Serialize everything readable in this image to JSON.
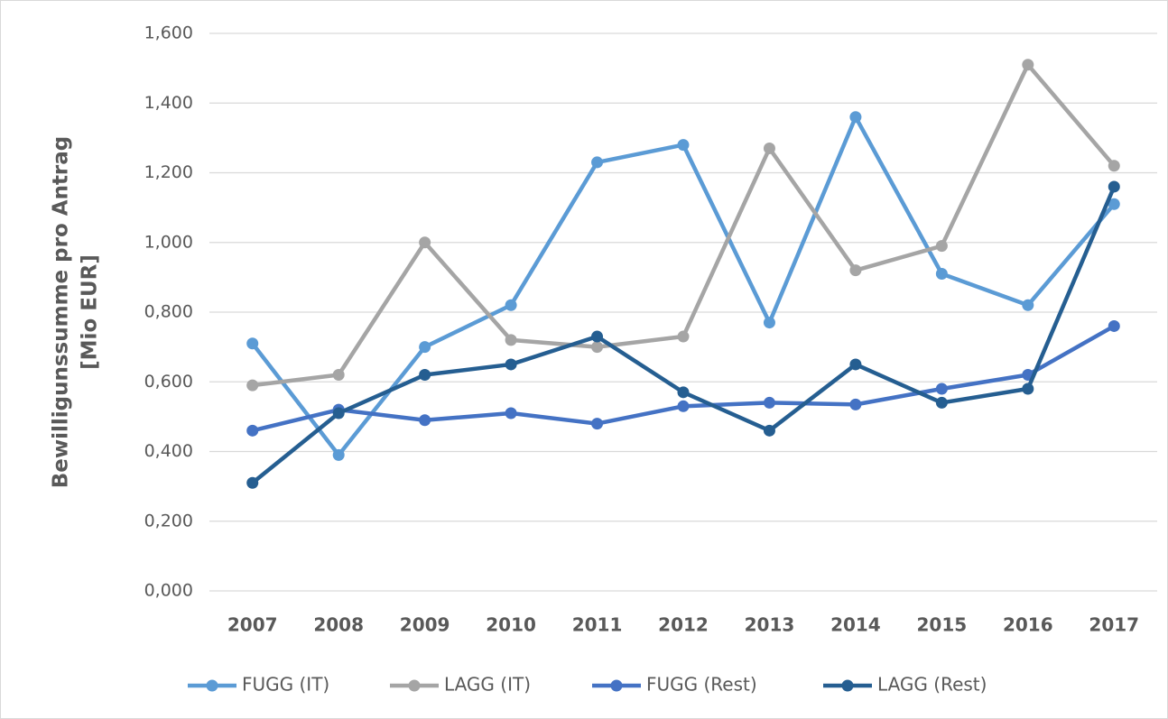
{
  "chart_data": {
    "type": "line",
    "y_label": [
      "Bewilligunssumme pro Antrag",
      "[Mio EUR]"
    ],
    "categories": [
      "2007",
      "2008",
      "2009",
      "2010",
      "2011",
      "2012",
      "2013",
      "2014",
      "2015",
      "2016",
      "2017"
    ],
    "series": [
      {
        "name": "FUGG (IT)",
        "color": "#5b9bd5",
        "values": [
          0.71,
          0.39,
          0.7,
          0.82,
          1.23,
          1.28,
          0.77,
          1.36,
          0.91,
          0.82,
          1.11
        ]
      },
      {
        "name": "LAGG (IT)",
        "color": "#a5a5a5",
        "values": [
          0.59,
          0.62,
          1.0,
          0.72,
          0.7,
          0.73,
          1.27,
          0.92,
          0.99,
          1.51,
          1.22
        ]
      },
      {
        "name": "FUGG (Rest)",
        "color": "#4472c4",
        "values": [
          0.46,
          0.52,
          0.49,
          0.51,
          0.48,
          0.53,
          0.54,
          0.535,
          0.58,
          0.62,
          0.76
        ]
      },
      {
        "name": "LAGG (Rest)",
        "color": "#255e91",
        "values": [
          0.31,
          0.51,
          0.62,
          0.65,
          0.73,
          0.57,
          0.46,
          0.65,
          0.54,
          0.58,
          1.16
        ]
      }
    ],
    "ylim": [
      0,
      1.6
    ],
    "yticks": [
      {
        "value": 0,
        "label": "0,000"
      },
      {
        "value": 0.2,
        "label": "0,200"
      },
      {
        "value": 0.4,
        "label": "0,400"
      },
      {
        "value": 0.6,
        "label": "0,600"
      },
      {
        "value": 0.8,
        "label": "0,800"
      },
      {
        "value": 1.0,
        "label": "1,000"
      },
      {
        "value": 1.2,
        "label": "1,200"
      },
      {
        "value": 1.4,
        "label": "1,400"
      },
      {
        "value": 1.6,
        "label": "1,600"
      }
    ],
    "grid": true,
    "legend": "bottom"
  }
}
